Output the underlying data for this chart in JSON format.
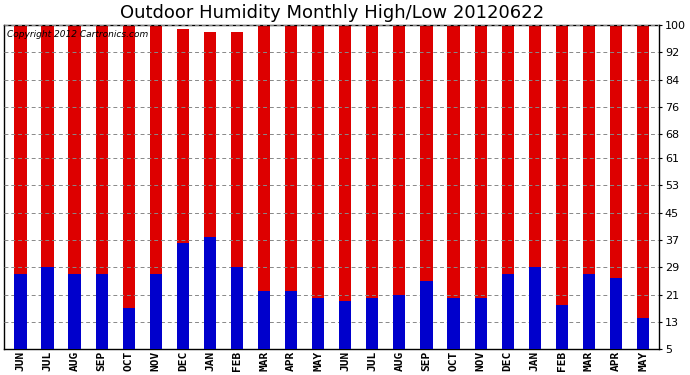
{
  "title": "Outdoor Humidity Monthly High/Low 20120622",
  "copyright": "Copyright 2012 Cartronics.com",
  "categories": [
    "JUN",
    "JUL",
    "AUG",
    "SEP",
    "OCT",
    "NOV",
    "DEC",
    "JAN",
    "FEB",
    "MAR",
    "APR",
    "MAY",
    "JUN",
    "JUL",
    "AUG",
    "SEP",
    "OCT",
    "NOV",
    "DEC",
    "JAN",
    "FEB",
    "MAR",
    "APR",
    "MAY"
  ],
  "high_values": [
    100,
    100,
    100,
    100,
    100,
    100,
    99,
    98,
    98,
    100,
    100,
    100,
    100,
    100,
    100,
    100,
    100,
    100,
    100,
    100,
    100,
    100,
    100,
    100
  ],
  "low_values": [
    27,
    29,
    27,
    27,
    17,
    27,
    36,
    38,
    29,
    22,
    22,
    20,
    19,
    20,
    21,
    25,
    20,
    20,
    27,
    29,
    18,
    27,
    26,
    14
  ],
  "bar_color_high": "#dd0000",
  "bar_color_low": "#0000cc",
  "background_color": "#ffffff",
  "plot_bg_color": "#ffffff",
  "grid_color": "#888888",
  "yticks": [
    5,
    13,
    21,
    29,
    37,
    45,
    53,
    61,
    68,
    76,
    84,
    92,
    100
  ],
  "ylim": [
    5,
    100
  ],
  "title_fontsize": 13,
  "tick_fontsize": 8,
  "bar_width": 0.45
}
